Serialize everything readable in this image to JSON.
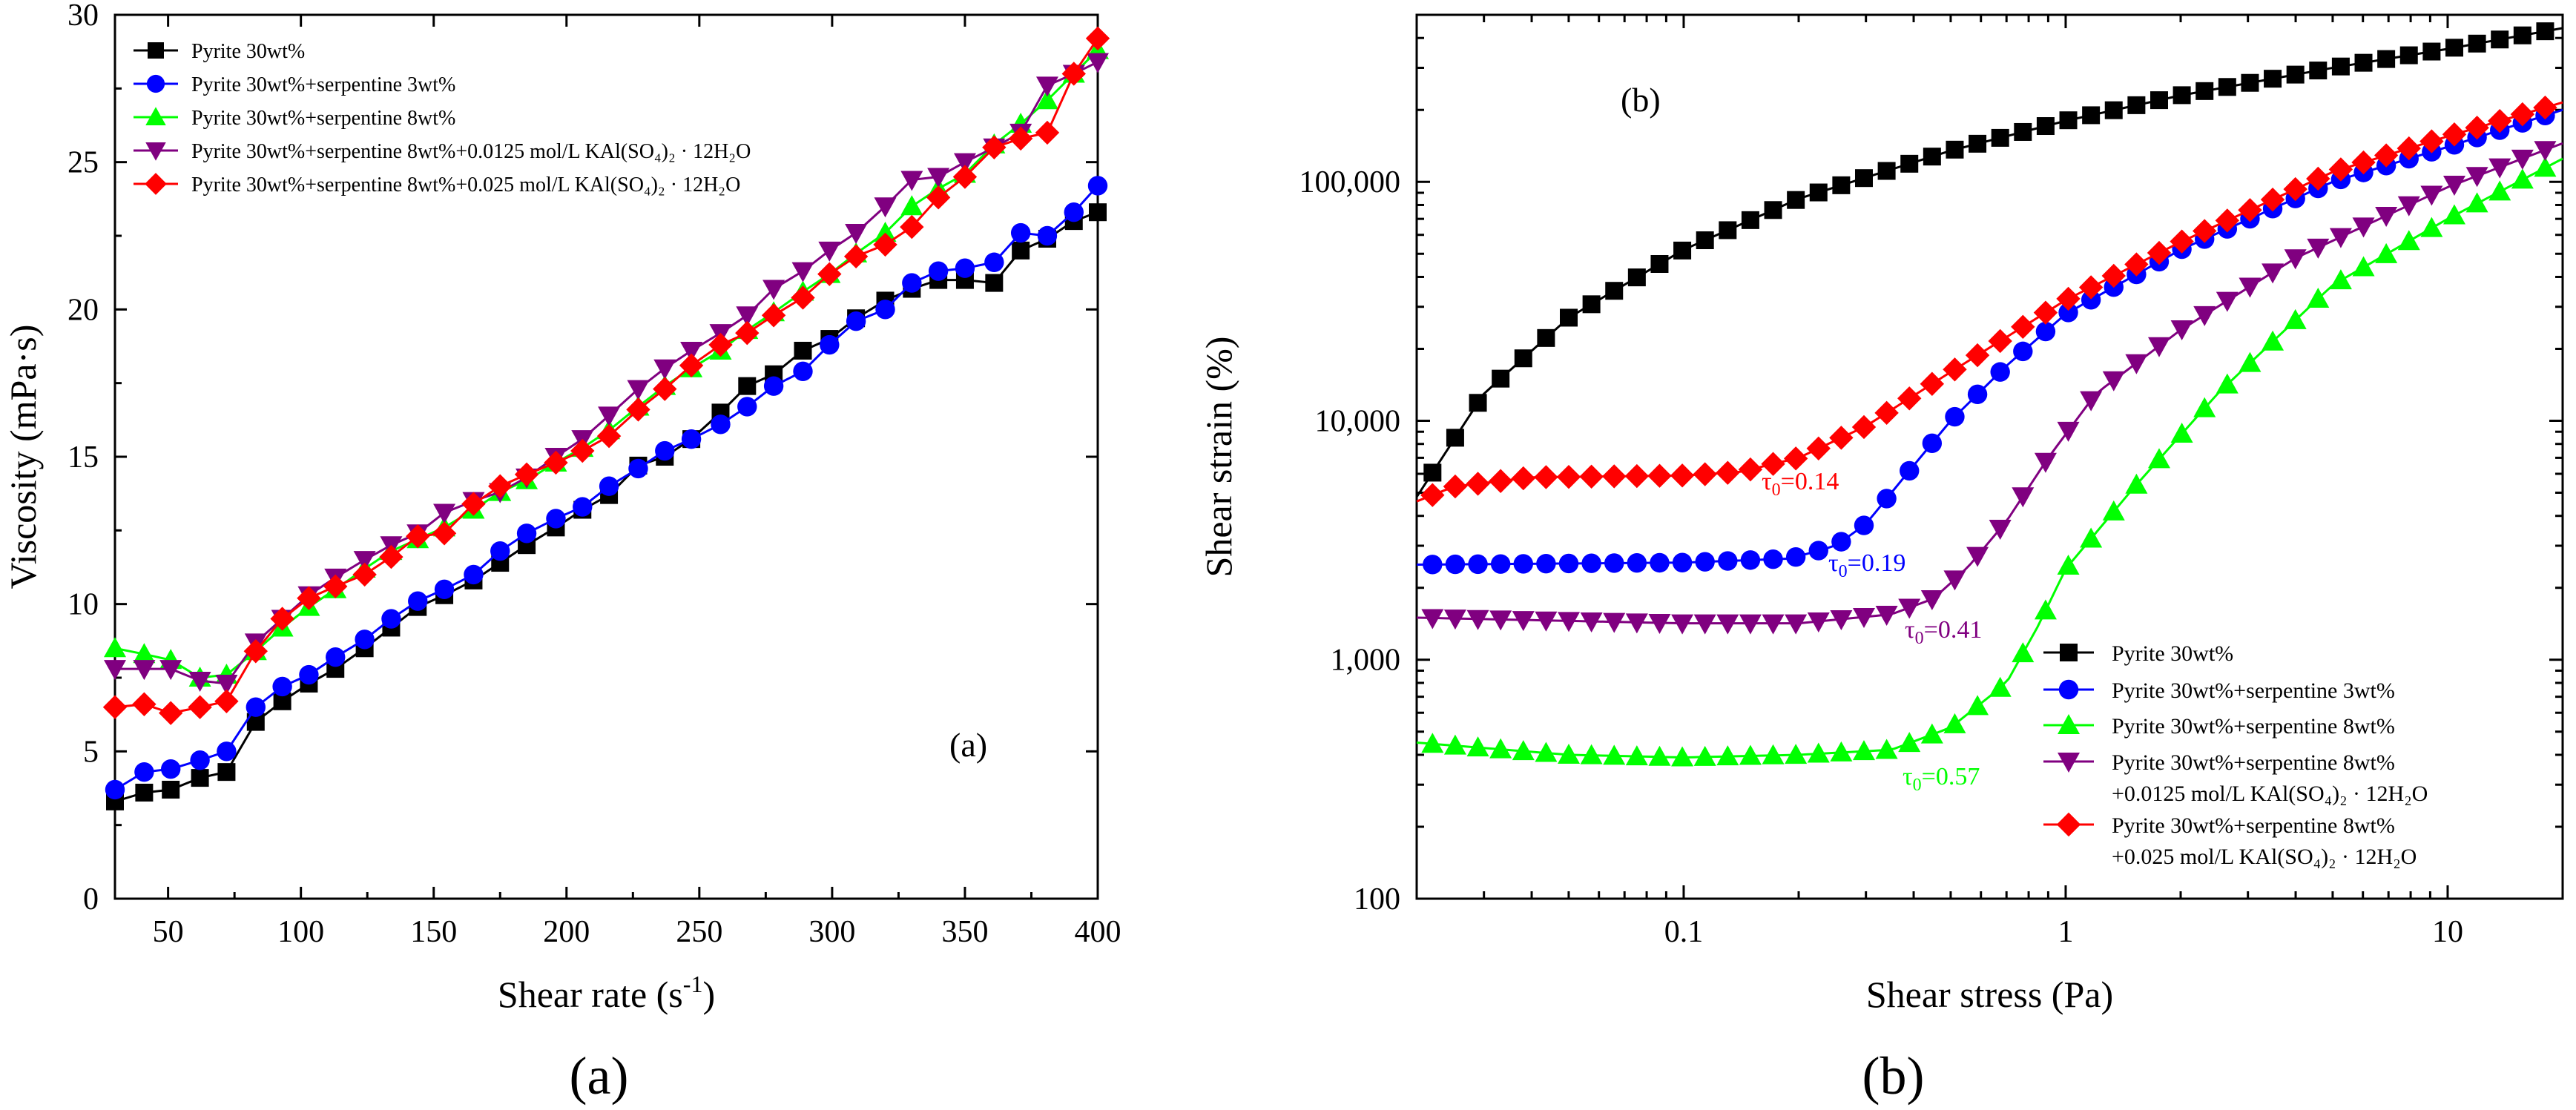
{
  "chart_data": [
    {
      "panel": "(a)",
      "type": "line",
      "panel_label": "(a)",
      "caption": "(a)",
      "xlabel": "Shear rate (s",
      "xlabel_sup": "-1",
      "xlabel_end": ")",
      "ylabel": "Viscosity (mPa·s)",
      "xlim": [
        30,
        400
      ],
      "ylim": [
        0,
        30
      ],
      "xticks": [
        50,
        100,
        150,
        200,
        250,
        300,
        350,
        400
      ],
      "yticks": [
        0,
        5,
        10,
        15,
        20,
        25,
        30
      ],
      "legend_position": "top-left",
      "x": [
        30,
        41,
        51,
        62,
        72,
        83,
        93,
        103,
        113,
        124,
        134,
        144,
        154,
        165,
        175,
        185,
        196,
        206,
        216,
        227,
        237,
        247,
        258,
        268,
        278,
        289,
        299,
        309,
        320,
        330,
        340,
        350,
        361,
        371,
        381,
        391,
        400
      ],
      "series": [
        {
          "name": "Pyrite 30wt%",
          "marker": "square",
          "color": "#000000",
          "values": [
            3.3,
            3.6,
            3.7,
            4.1,
            4.3,
            6.0,
            6.7,
            7.3,
            7.8,
            8.5,
            9.2,
            9.9,
            10.3,
            10.8,
            11.4,
            12.0,
            12.6,
            13.2,
            13.7,
            14.7,
            15.0,
            15.6,
            16.5,
            17.4,
            17.8,
            18.6,
            19.0,
            19.7,
            20.3,
            20.7,
            21.0,
            21.0,
            20.9,
            22.0,
            22.4,
            23.0,
            23.3
          ]
        },
        {
          "name": "Pyrite 30wt%+serpentine 3wt%",
          "marker": "circle",
          "color": "#0000ff",
          "values": [
            3.7,
            4.3,
            4.4,
            4.7,
            5.0,
            6.5,
            7.2,
            7.6,
            8.2,
            8.8,
            9.5,
            10.1,
            10.5,
            11.0,
            11.8,
            12.4,
            12.9,
            13.3,
            14.0,
            14.6,
            15.2,
            15.6,
            16.1,
            16.7,
            17.4,
            17.9,
            18.8,
            19.6,
            20.0,
            20.9,
            21.3,
            21.4,
            21.6,
            22.6,
            22.5,
            23.3,
            24.2
          ]
        },
        {
          "name": "Pyrite 30wt%+serpentine 8wt%",
          "marker": "triangle-up",
          "color": "#00ff00",
          "values": [
            8.5,
            8.3,
            8.1,
            7.5,
            7.6,
            8.4,
            9.2,
            9.9,
            10.5,
            11.2,
            11.8,
            12.2,
            12.6,
            13.2,
            13.8,
            14.2,
            14.8,
            15.3,
            15.9,
            16.7,
            17.4,
            18.0,
            18.6,
            19.3,
            19.9,
            20.6,
            21.2,
            21.9,
            22.6,
            23.5,
            24.1,
            24.6,
            25.6,
            26.3,
            27.1,
            28.0,
            28.8
          ]
        },
        {
          "name": "Pyrite 30wt%+serpentine 8wt%+0.0125 mol/L KAl(SO₄)₂ · 12H₂O",
          "marker": "triangle-down",
          "color": "#800080",
          "values": [
            7.8,
            7.8,
            7.8,
            7.4,
            7.3,
            8.7,
            9.5,
            10.3,
            10.9,
            11.5,
            12.0,
            12.4,
            13.1,
            13.5,
            13.8,
            14.3,
            15.0,
            15.6,
            16.4,
            17.3,
            18.0,
            18.6,
            19.2,
            19.8,
            20.7,
            21.3,
            22.0,
            22.6,
            23.5,
            24.4,
            24.5,
            25.0,
            25.5,
            26.0,
            27.6,
            28.0,
            28.4
          ]
        },
        {
          "name": "Pyrite 30wt%+serpentine 8wt%+0.025 mol/L KAl(SO₄)₂ · 12H₂O",
          "marker": "diamond",
          "color": "#ff0000",
          "values": [
            6.5,
            6.6,
            6.3,
            6.5,
            6.7,
            8.4,
            9.5,
            10.2,
            10.6,
            11.0,
            11.6,
            12.3,
            12.4,
            13.4,
            14.0,
            14.4,
            14.8,
            15.2,
            15.7,
            16.6,
            17.3,
            18.1,
            18.8,
            19.2,
            19.8,
            20.4,
            21.2,
            21.8,
            22.2,
            22.8,
            23.8,
            24.5,
            25.5,
            25.8,
            26.0,
            28.0,
            29.2
          ]
        }
      ]
    },
    {
      "panel": "(b)",
      "type": "line",
      "panel_label": "(b)",
      "caption": "(b)",
      "xlabel": "Shear stress (Pa)",
      "ylabel": "Shear strain (%)",
      "xscale": "log",
      "yscale": "log",
      "xlim": [
        0.02,
        20
      ],
      "ylim": [
        100,
        500000
      ],
      "xticks": [
        0.1,
        1,
        10
      ],
      "xticklabels": [
        "0.1",
        "1",
        "10"
      ],
      "yticks": [
        100,
        1000,
        10000,
        100000
      ],
      "yticklabels": [
        "100",
        "1,000",
        "10,000",
        "100,000"
      ],
      "legend_position": "bottom-right",
      "series": [
        {
          "name": "Pyrite 30wt%",
          "marker": "square",
          "color": "#000000",
          "tau0": "",
          "x_start": 0.022,
          "x_end": 18.0,
          "points": [
            [
              0.02,
              4800
            ],
            [
              0.03,
              13000
            ],
            [
              0.05,
              27000
            ],
            [
              0.1,
              52000
            ],
            [
              0.2,
              85000
            ],
            [
              0.5,
              135000
            ],
            [
              1,
              180000
            ],
            [
              2,
              230000
            ],
            [
              5,
              300000
            ],
            [
              10,
              360000
            ],
            [
              20,
              440000
            ]
          ]
        },
        {
          "name": "Pyrite 30wt%+serpentine 3wt%",
          "marker": "circle",
          "color": "#0000ff",
          "tau0": "τ0=0.19",
          "tau_x": 0.19,
          "x_start": 0.022,
          "x_end": 18.0,
          "points": [
            [
              0.02,
              2500
            ],
            [
              0.1,
              2550
            ],
            [
              0.19,
              2650
            ],
            [
              0.25,
              3000
            ],
            [
              0.3,
              3700
            ],
            [
              0.4,
              6500
            ],
            [
              0.5,
              10000
            ],
            [
              0.7,
              17000
            ],
            [
              1,
              28000
            ],
            [
              2,
              52000
            ],
            [
              5,
              100000
            ],
            [
              10,
              140000
            ],
            [
              20,
              200000
            ]
          ]
        },
        {
          "name": "Pyrite 30wt%+serpentine 8wt%",
          "marker": "triangle-up",
          "color": "#00ff00",
          "tau0": "τ0=0.57",
          "tau_x": 0.57,
          "x_start": 0.022,
          "x_end": 18.0,
          "points": [
            [
              0.02,
              450
            ],
            [
              0.05,
              400
            ],
            [
              0.1,
              390
            ],
            [
              0.2,
              400
            ],
            [
              0.35,
              420
            ],
            [
              0.5,
              520
            ],
            [
              0.7,
              800
            ],
            [
              0.85,
              1400
            ],
            [
              1,
              2400
            ],
            [
              1.5,
              5200
            ],
            [
              2.5,
              13000
            ],
            [
              5,
              37000
            ],
            [
              10,
              70000
            ],
            [
              20,
              125000
            ]
          ]
        },
        {
          "name": "Pyrite 30wt%+serpentine 8wt%",
          "name_line2": "+0.0125 mol/L KAl(SO₄)₂ · 12H₂O",
          "marker": "triangle-down",
          "color": "#800080",
          "tau0": "τ0=0.41",
          "tau_x": 0.41,
          "x_start": 0.022,
          "x_end": 18.0,
          "points": [
            [
              0.02,
              1500
            ],
            [
              0.1,
              1420
            ],
            [
              0.2,
              1420
            ],
            [
              0.35,
              1550
            ],
            [
              0.45,
              1800
            ],
            [
              0.55,
              2400
            ],
            [
              0.7,
              3800
            ],
            [
              0.9,
              7000
            ],
            [
              1.2,
              13000
            ],
            [
              2,
              24000
            ],
            [
              4,
              48000
            ],
            [
              10,
              95000
            ],
            [
              20,
              145000
            ]
          ]
        },
        {
          "name": "Pyrite 30wt%+serpentine 8wt%",
          "name_line2": "+0.025 mol/L KAl(SO₄)₂ · 12H₂O",
          "marker": "diamond",
          "color": "#ff0000",
          "tau0": "τ0=0.14",
          "tau_x": 0.14,
          "x_start": 0.022,
          "x_end": 18.0,
          "points": [
            [
              0.02,
              4600
            ],
            [
              0.025,
              5300
            ],
            [
              0.04,
              5800
            ],
            [
              0.1,
              5900
            ],
            [
              0.14,
              6100
            ],
            [
              0.2,
              7000
            ],
            [
              0.3,
              9500
            ],
            [
              0.5,
              16000
            ],
            [
              1,
              32000
            ],
            [
              2,
              56000
            ],
            [
              5,
              110000
            ],
            [
              10,
              155000
            ],
            [
              20,
              215000
            ]
          ]
        }
      ]
    }
  ]
}
